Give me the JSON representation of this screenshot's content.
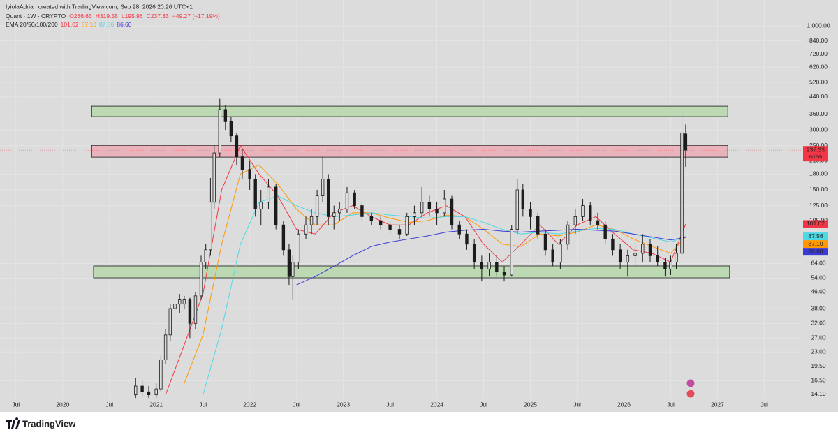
{
  "chart_data": {
    "type": "candlestick",
    "header": {
      "credit": "IyiolaAdrian created with TradingView.com, Sep 28, 2026 20:26 UTC+1",
      "symbol": "Quant · 1W · CRYPTO",
      "open": "O286.63",
      "high": "H319.55",
      "low": "L195.96",
      "close": "C237.33",
      "change": "−49.27 (−17.19%)"
    },
    "log_scale": true,
    "ylim": [
      13.3,
      1349
    ],
    "yticks": [
      {
        "value": 1000,
        "label": "1,000.00"
      },
      {
        "value": 840,
        "label": "840.00"
      },
      {
        "value": 720,
        "label": "720.00"
      },
      {
        "value": 620,
        "label": "620.00"
      },
      {
        "value": 520,
        "label": "520.00"
      },
      {
        "value": 440,
        "label": "440.00"
      },
      {
        "value": 360,
        "label": "360.00"
      },
      {
        "value": 300,
        "label": "300.00"
      },
      {
        "value": 250,
        "label": "250.00"
      },
      {
        "value": 210,
        "label": "210.00"
      },
      {
        "value": 180,
        "label": "180.00"
      },
      {
        "value": 150,
        "label": "150.00"
      },
      {
        "value": 125,
        "label": "125.00"
      },
      {
        "value": 105,
        "label": "105.00"
      },
      {
        "value": 64,
        "label": "64.00"
      },
      {
        "value": 54,
        "label": "54.00"
      },
      {
        "value": 46,
        "label": "46.00"
      },
      {
        "value": 38,
        "label": "38.00"
      },
      {
        "value": 32,
        "label": "32.00"
      },
      {
        "value": 27,
        "label": "27.00"
      },
      {
        "value": 23,
        "label": "23.00"
      },
      {
        "value": 19.5,
        "label": "19.50"
      },
      {
        "value": 16.5,
        "label": "16.50"
      },
      {
        "value": 14.1,
        "label": "14.10"
      }
    ],
    "xlim": [
      2019.33,
      2027.9
    ],
    "xticks": [
      {
        "value": 2019.5,
        "label": "Jul"
      },
      2020,
      {
        "value": 2020.5,
        "label": "Jul"
      },
      2021,
      {
        "value": 2021.5,
        "label": "Jul"
      },
      2022,
      {
        "value": 2022.5,
        "label": "Jul"
      },
      2023,
      {
        "value": 2023.5,
        "label": "Jul"
      },
      2024,
      {
        "value": 2024.5,
        "label": "Jul"
      },
      2025,
      {
        "value": 2025.5,
        "label": "Jul"
      },
      2026,
      {
        "value": 2026.5,
        "label": "Jul"
      },
      2027,
      {
        "value": 2027.5,
        "label": "Jul"
      }
    ],
    "grid": true,
    "candles": {
      "color": "#1c1c1c",
      "x": [
        2020.78,
        2020.85,
        2020.92,
        2021.0,
        2021.05,
        2021.1,
        2021.15,
        2021.2,
        2021.25,
        2021.3,
        2021.36,
        2021.42,
        2021.48,
        2021.53,
        2021.58,
        2021.62,
        2021.68,
        2021.74,
        2021.8,
        2021.86,
        2021.92,
        2022.0,
        2022.06,
        2022.12,
        2022.2,
        2022.28,
        2022.36,
        2022.42,
        2022.46,
        2022.52,
        2022.6,
        2022.66,
        2022.72,
        2022.78,
        2022.84,
        2022.9,
        2022.96,
        2023.04,
        2023.12,
        2023.2,
        2023.3,
        2023.4,
        2023.5,
        2023.6,
        2023.68,
        2023.76,
        2023.84,
        2023.92,
        2024.0,
        2024.08,
        2024.16,
        2024.24,
        2024.32,
        2024.4,
        2024.48,
        2024.56,
        2024.64,
        2024.72,
        2024.8,
        2024.86,
        2024.92,
        2025.0,
        2025.08,
        2025.16,
        2025.24,
        2025.32,
        2025.4,
        2025.48,
        2025.56,
        2025.64,
        2025.72,
        2025.8,
        2025.88,
        2025.96,
        2026.04,
        2026.12,
        2026.2,
        2026.28,
        2026.36,
        2026.44,
        2026.5,
        2026.56,
        2026.62,
        2026.66
      ],
      "ohlc": [
        [
          14,
          17,
          13.5,
          15.5
        ],
        [
          15.5,
          16.5,
          13.8,
          14.5
        ],
        [
          14.5,
          15.5,
          13.5,
          14
        ],
        [
          14,
          16,
          13.5,
          15
        ],
        [
          15,
          22,
          14.5,
          21
        ],
        [
          21,
          30,
          20,
          28
        ],
        [
          28,
          40,
          26,
          38
        ],
        [
          38,
          44,
          34,
          40
        ],
        [
          40,
          45,
          36,
          42
        ],
        [
          40,
          44,
          38,
          42
        ],
        [
          42,
          43,
          27,
          32
        ],
        [
          32,
          46,
          30,
          44
        ],
        [
          44,
          70,
          42,
          65
        ],
        [
          65,
          80,
          60,
          75
        ],
        [
          75,
          172,
          70,
          130
        ],
        [
          130,
          250,
          120,
          230
        ],
        [
          230,
          430,
          220,
          380
        ],
        [
          380,
          400,
          300,
          330
        ],
        [
          330,
          350,
          260,
          280
        ],
        [
          280,
          290,
          200,
          220
        ],
        [
          220,
          240,
          170,
          190
        ],
        [
          190,
          210,
          150,
          170
        ],
        [
          170,
          180,
          110,
          120
        ],
        [
          120,
          150,
          100,
          130
        ],
        [
          130,
          170,
          120,
          155
        ],
        [
          155,
          160,
          95,
          100
        ],
        [
          100,
          105,
          70,
          75
        ],
        [
          75,
          80,
          50,
          55
        ],
        [
          55,
          70,
          42,
          65
        ],
        [
          65,
          95,
          60,
          90
        ],
        [
          90,
          110,
          85,
          100
        ],
        [
          100,
          120,
          90,
          110
        ],
        [
          110,
          150,
          100,
          140
        ],
        [
          140,
          220,
          130,
          170
        ],
        [
          170,
          180,
          100,
          110
        ],
        [
          110,
          125,
          95,
          115
        ],
        [
          115,
          130,
          105,
          120
        ],
        [
          120,
          155,
          115,
          145
        ],
        [
          145,
          150,
          120,
          125
        ],
        [
          125,
          130,
          105,
          110
        ],
        [
          110,
          115,
          100,
          105
        ],
        [
          105,
          110,
          95,
          100
        ],
        [
          100,
          105,
          90,
          95
        ],
        [
          95,
          100,
          85,
          90
        ],
        [
          90,
          115,
          88,
          110
        ],
        [
          110,
          125,
          100,
          115
        ],
        [
          115,
          155,
          110,
          130
        ],
        [
          130,
          140,
          110,
          120
        ],
        [
          120,
          130,
          100,
          115
        ],
        [
          115,
          150,
          110,
          135
        ],
        [
          135,
          140,
          95,
          100
        ],
        [
          100,
          105,
          85,
          90
        ],
        [
          90,
          95,
          75,
          80
        ],
        [
          80,
          85,
          60,
          65
        ],
        [
          65,
          70,
          52,
          60
        ],
        [
          60,
          72,
          55,
          65
        ],
        [
          65,
          70,
          55,
          58
        ],
        [
          58,
          62,
          52,
          56
        ],
        [
          56,
          100,
          55,
          95
        ],
        [
          95,
          170,
          90,
          150
        ],
        [
          150,
          160,
          110,
          120
        ],
        [
          120,
          130,
          95,
          110
        ],
        [
          110,
          115,
          85,
          90
        ],
        [
          90,
          95,
          70,
          75
        ],
        [
          75,
          80,
          62,
          65
        ],
        [
          65,
          85,
          60,
          80
        ],
        [
          80,
          105,
          75,
          100
        ],
        [
          100,
          120,
          90,
          110
        ],
        [
          110,
          135,
          105,
          125
        ],
        [
          125,
          130,
          100,
          105
        ],
        [
          105,
          115,
          95,
          100
        ],
        [
          100,
          105,
          80,
          85
        ],
        [
          85,
          90,
          70,
          75
        ],
        [
          75,
          80,
          60,
          65
        ],
        [
          65,
          75,
          55,
          70
        ],
        [
          70,
          80,
          62,
          72
        ],
        [
          72,
          90,
          65,
          80
        ],
        [
          80,
          85,
          65,
          70
        ],
        [
          70,
          78,
          62,
          65
        ],
        [
          65,
          68,
          55,
          60
        ],
        [
          60,
          70,
          56,
          65
        ],
        [
          65,
          80,
          60,
          72
        ],
        [
          72,
          370,
          70,
          290
        ],
        [
          286.63,
          319.55,
          195.96,
          237.33
        ]
      ]
    },
    "price_label": "237.33",
    "countdown": "6d 5h",
    "price_color": "#f23645",
    "ema": {
      "label": "EMA 20/50/100/200",
      "x": [
        2021.1,
        2021.3,
        2021.5,
        2021.7,
        2021.9,
        2022.1,
        2022.3,
        2022.5,
        2022.7,
        2022.9,
        2023.1,
        2023.3,
        2023.5,
        2023.7,
        2023.9,
        2024.1,
        2024.3,
        2024.5,
        2024.7,
        2024.9,
        2025.1,
        2025.3,
        2025.5,
        2025.7,
        2025.9,
        2026.1,
        2026.3,
        2026.5,
        2026.66
      ],
      "series": [
        {
          "color": "#f23645",
          "value_label": "101.02",
          "values": [
            14,
            25,
            45,
            150,
            250,
            180,
            140,
            95,
            90,
            115,
            125,
            110,
            100,
            100,
            115,
            125,
            110,
            80,
            65,
            80,
            100,
            80,
            100,
            110,
            90,
            75,
            72,
            65,
            101.02
          ]
        },
        {
          "color": "#ff9800",
          "value_label": "87.10",
          "values": [
            null,
            16,
            28,
            80,
            180,
            200,
            160,
            120,
            100,
            100,
            115,
            115,
            108,
            103,
            105,
            112,
            110,
            95,
            80,
            78,
            90,
            88,
            92,
            100,
            95,
            85,
            78,
            72,
            87.1
          ]
        },
        {
          "color": "#4dd8e6",
          "value_label": "87.56",
          "values": [
            null,
            null,
            14,
            30,
            80,
            130,
            140,
            125,
            115,
            110,
            112,
            115,
            112,
            110,
            108,
            110,
            110,
            103,
            95,
            90,
            92,
            90,
            93,
            96,
            95,
            90,
            86,
            82,
            87.56
          ]
        },
        {
          "color": "#3a3ad6",
          "value_label": "86.60",
          "values": [
            null,
            null,
            null,
            null,
            null,
            null,
            null,
            50,
            55,
            62,
            70,
            78,
            82,
            85,
            88,
            92,
            94,
            95,
            93,
            92,
            93,
            94,
            95,
            94,
            93,
            90,
            87,
            84,
            86.6
          ]
        }
      ]
    },
    "zones": [
      {
        "x": [
          2020.31,
          2027.11
        ],
        "y": [
          350,
          395
        ],
        "color": "#bcd9b4"
      },
      {
        "x": [
          2020.31,
          2027.11
        ],
        "y": [
          219,
          251
        ],
        "color": "#e9b3bc"
      },
      {
        "x": [
          2020.33,
          2027.13
        ],
        "y": [
          54.2,
          62.2
        ],
        "color": "#bcd9b4"
      }
    ],
    "brand": "TradingView"
  }
}
